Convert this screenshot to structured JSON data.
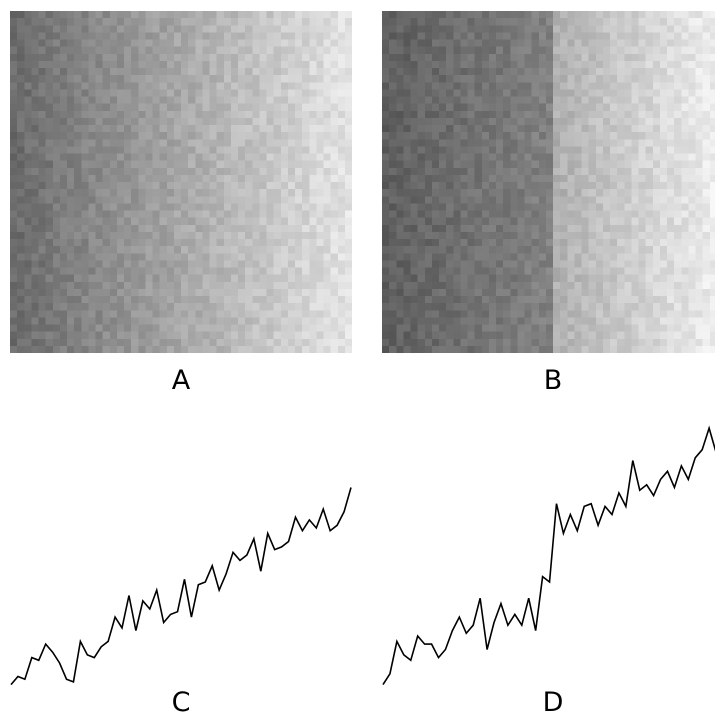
{
  "figure": {
    "panels": [
      {
        "label": "A",
        "kind": "texture",
        "profile": "linear-gradient",
        "dark": "#6b6b6b",
        "light": "#e3e3e3"
      },
      {
        "label": "B",
        "kind": "texture",
        "profile": "step-gradient",
        "dark": "#5f5f5f",
        "light": "#efefef"
      },
      {
        "label": "C",
        "kind": "line-profile",
        "profile": "linear-gradient",
        "stroke": "#000000"
      },
      {
        "label": "D",
        "kind": "line-profile",
        "profile": "step-gradient",
        "stroke": "#000000"
      }
    ]
  },
  "chart_data": [
    {
      "type": "line",
      "panel": "C",
      "x": [
        0,
        1,
        2,
        3,
        4,
        5,
        6,
        7,
        8,
        9,
        10,
        11,
        12,
        13,
        14,
        15,
        16,
        17,
        18,
        19,
        20,
        21,
        22,
        23,
        24,
        25,
        26,
        27,
        28,
        29,
        30,
        31,
        32,
        33,
        34,
        35,
        36,
        37,
        38,
        39,
        40,
        41,
        42,
        43,
        44,
        45,
        46,
        47,
        48,
        49
      ],
      "y": [
        0.02,
        0.05,
        0.04,
        0.12,
        0.11,
        0.17,
        0.14,
        0.1,
        0.04,
        0.03,
        0.18,
        0.13,
        0.12,
        0.16,
        0.18,
        0.27,
        0.23,
        0.35,
        0.22,
        0.33,
        0.3,
        0.37,
        0.25,
        0.28,
        0.29,
        0.41,
        0.27,
        0.39,
        0.4,
        0.46,
        0.37,
        0.43,
        0.51,
        0.48,
        0.5,
        0.56,
        0.44,
        0.58,
        0.52,
        0.53,
        0.55,
        0.64,
        0.59,
        0.63,
        0.6,
        0.67,
        0.59,
        0.61,
        0.66,
        0.75
      ]
    },
    {
      "type": "line",
      "panel": "D",
      "x": [
        0,
        1,
        2,
        3,
        4,
        5,
        6,
        7,
        8,
        9,
        10,
        11,
        12,
        13,
        14,
        15,
        16,
        17,
        18,
        19,
        20,
        21,
        22,
        23,
        24,
        25,
        26,
        27,
        28,
        29,
        30,
        31,
        32,
        33,
        34,
        35,
        36,
        37,
        38,
        39,
        40,
        41,
        42,
        43,
        44,
        45,
        46,
        47,
        48,
        49
      ],
      "y": [
        0.02,
        0.06,
        0.18,
        0.13,
        0.11,
        0.2,
        0.17,
        0.17,
        0.12,
        0.15,
        0.22,
        0.27,
        0.21,
        0.24,
        0.34,
        0.15,
        0.25,
        0.32,
        0.24,
        0.28,
        0.24,
        0.34,
        0.22,
        0.42,
        0.4,
        0.69,
        0.58,
        0.65,
        0.59,
        0.68,
        0.69,
        0.61,
        0.68,
        0.65,
        0.73,
        0.68,
        0.85,
        0.74,
        0.76,
        0.72,
        0.78,
        0.81,
        0.75,
        0.83,
        0.78,
        0.86,
        0.89,
        0.97,
        0.88,
        0.8
      ]
    }
  ]
}
